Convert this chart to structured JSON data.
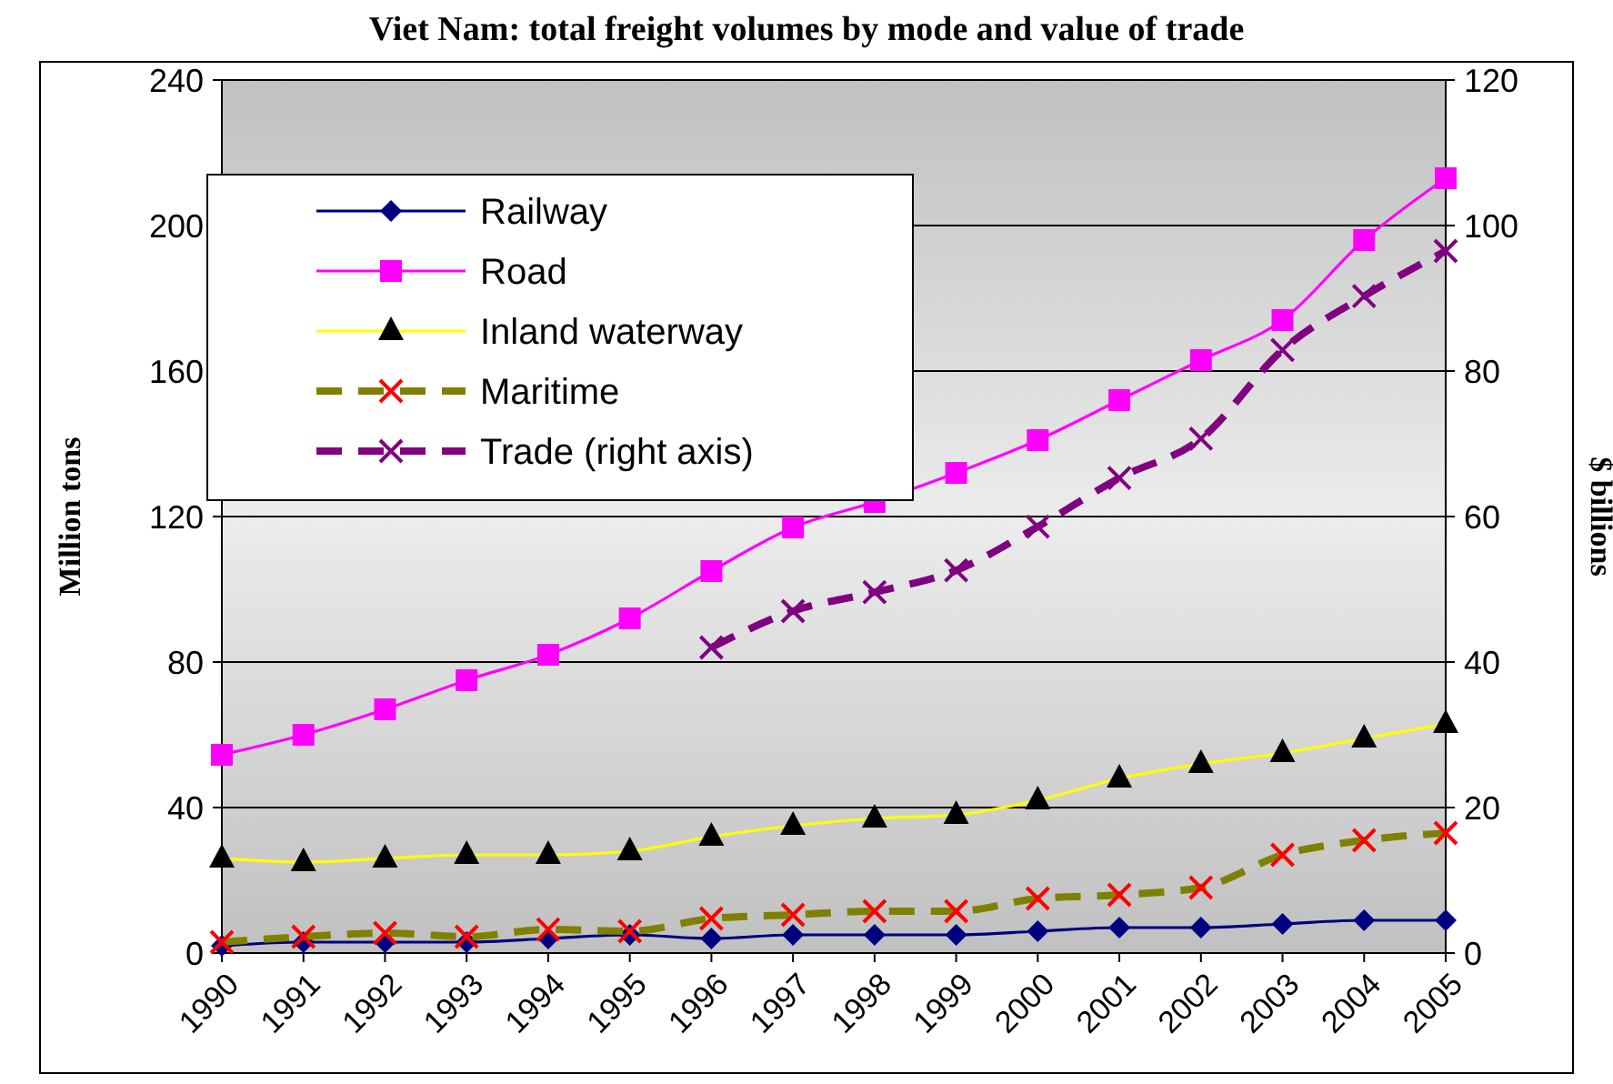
{
  "chart_data": {
    "type": "line",
    "title": "Viet Nam: total freight volumes by mode and value of trade",
    "ylabel": "Million tons",
    "y2label": "$ billions",
    "x": [
      1990,
      1991,
      1992,
      1993,
      1994,
      1995,
      1996,
      1997,
      1998,
      1999,
      2000,
      2001,
      2002,
      2003,
      2004,
      2005
    ],
    "xlim": [
      1990,
      2005
    ],
    "xticks": [
      1990,
      1991,
      1992,
      1993,
      1994,
      1995,
      1996,
      1997,
      1998,
      1999,
      2000,
      2001,
      2002,
      2003,
      2004,
      2005
    ],
    "ylim": [
      0,
      240
    ],
    "yticks": [
      0,
      40,
      80,
      120,
      160,
      200,
      240
    ],
    "y2lim": [
      0,
      120
    ],
    "y2ticks": [
      0,
      20,
      40,
      60,
      80,
      100,
      120
    ],
    "grid": "y",
    "legend": "top left",
    "series": [
      {
        "name": "Railway",
        "color": "#000080",
        "marker": "diamond",
        "line_style": "solid",
        "values": [
          2,
          3,
          3,
          3,
          4,
          5,
          4,
          5,
          5,
          5,
          6,
          7,
          7,
          8,
          9,
          9
        ]
      },
      {
        "name": "Road",
        "color": "#ff00ff",
        "marker": "square",
        "line_style": "solid",
        "values": [
          54.5,
          60,
          67,
          75,
          82,
          92,
          105,
          117,
          124,
          132,
          141,
          152,
          163,
          174,
          196,
          213
        ]
      },
      {
        "name": "Inland waterway",
        "color": "#ffff00",
        "marker": "triangle",
        "line_style": "solid",
        "colors": [
          "#000000",
          "#000000",
          "#000000",
          "#000000",
          "#000000",
          "#000000",
          "#000000",
          "#000000",
          "#000000",
          "#000000",
          "#000000",
          "#000000",
          "#000000",
          "#000000",
          "#000000",
          "#000000"
        ],
        "values": [
          26,
          25,
          26,
          27,
          27,
          28,
          32,
          35,
          37,
          38,
          42,
          48,
          52,
          55,
          59,
          63
        ]
      },
      {
        "name": "Maritime",
        "color": "#808000",
        "marker": "cross",
        "line_style": "dashed",
        "colors": [
          "#ff0000",
          "#ff0000",
          "#ff0000",
          "#ff0000",
          "#ff0000",
          "#ff0000",
          "#ff0000",
          "#ff0000",
          "#ff0000",
          "#ff0000",
          "#ff0000",
          "#ff0000",
          "#ff0000",
          "#ff0000",
          "#ff0000",
          "#ff0000"
        ],
        "values": [
          3,
          4.5,
          5.5,
          4.5,
          6.5,
          6,
          9.5,
          10.5,
          11.5,
          11.5,
          15,
          16,
          18,
          27,
          31,
          33
        ]
      },
      {
        "name": "Trade (right axis)",
        "color": "#800080",
        "marker": "cross",
        "line_style": "dashed",
        "axis": "y2",
        "values": [
          null,
          null,
          null,
          null,
          null,
          null,
          42,
          47,
          49.6,
          52.6,
          58.6,
          65.3,
          70.7,
          82.9,
          90.3,
          96.5
        ]
      }
    ]
  }
}
